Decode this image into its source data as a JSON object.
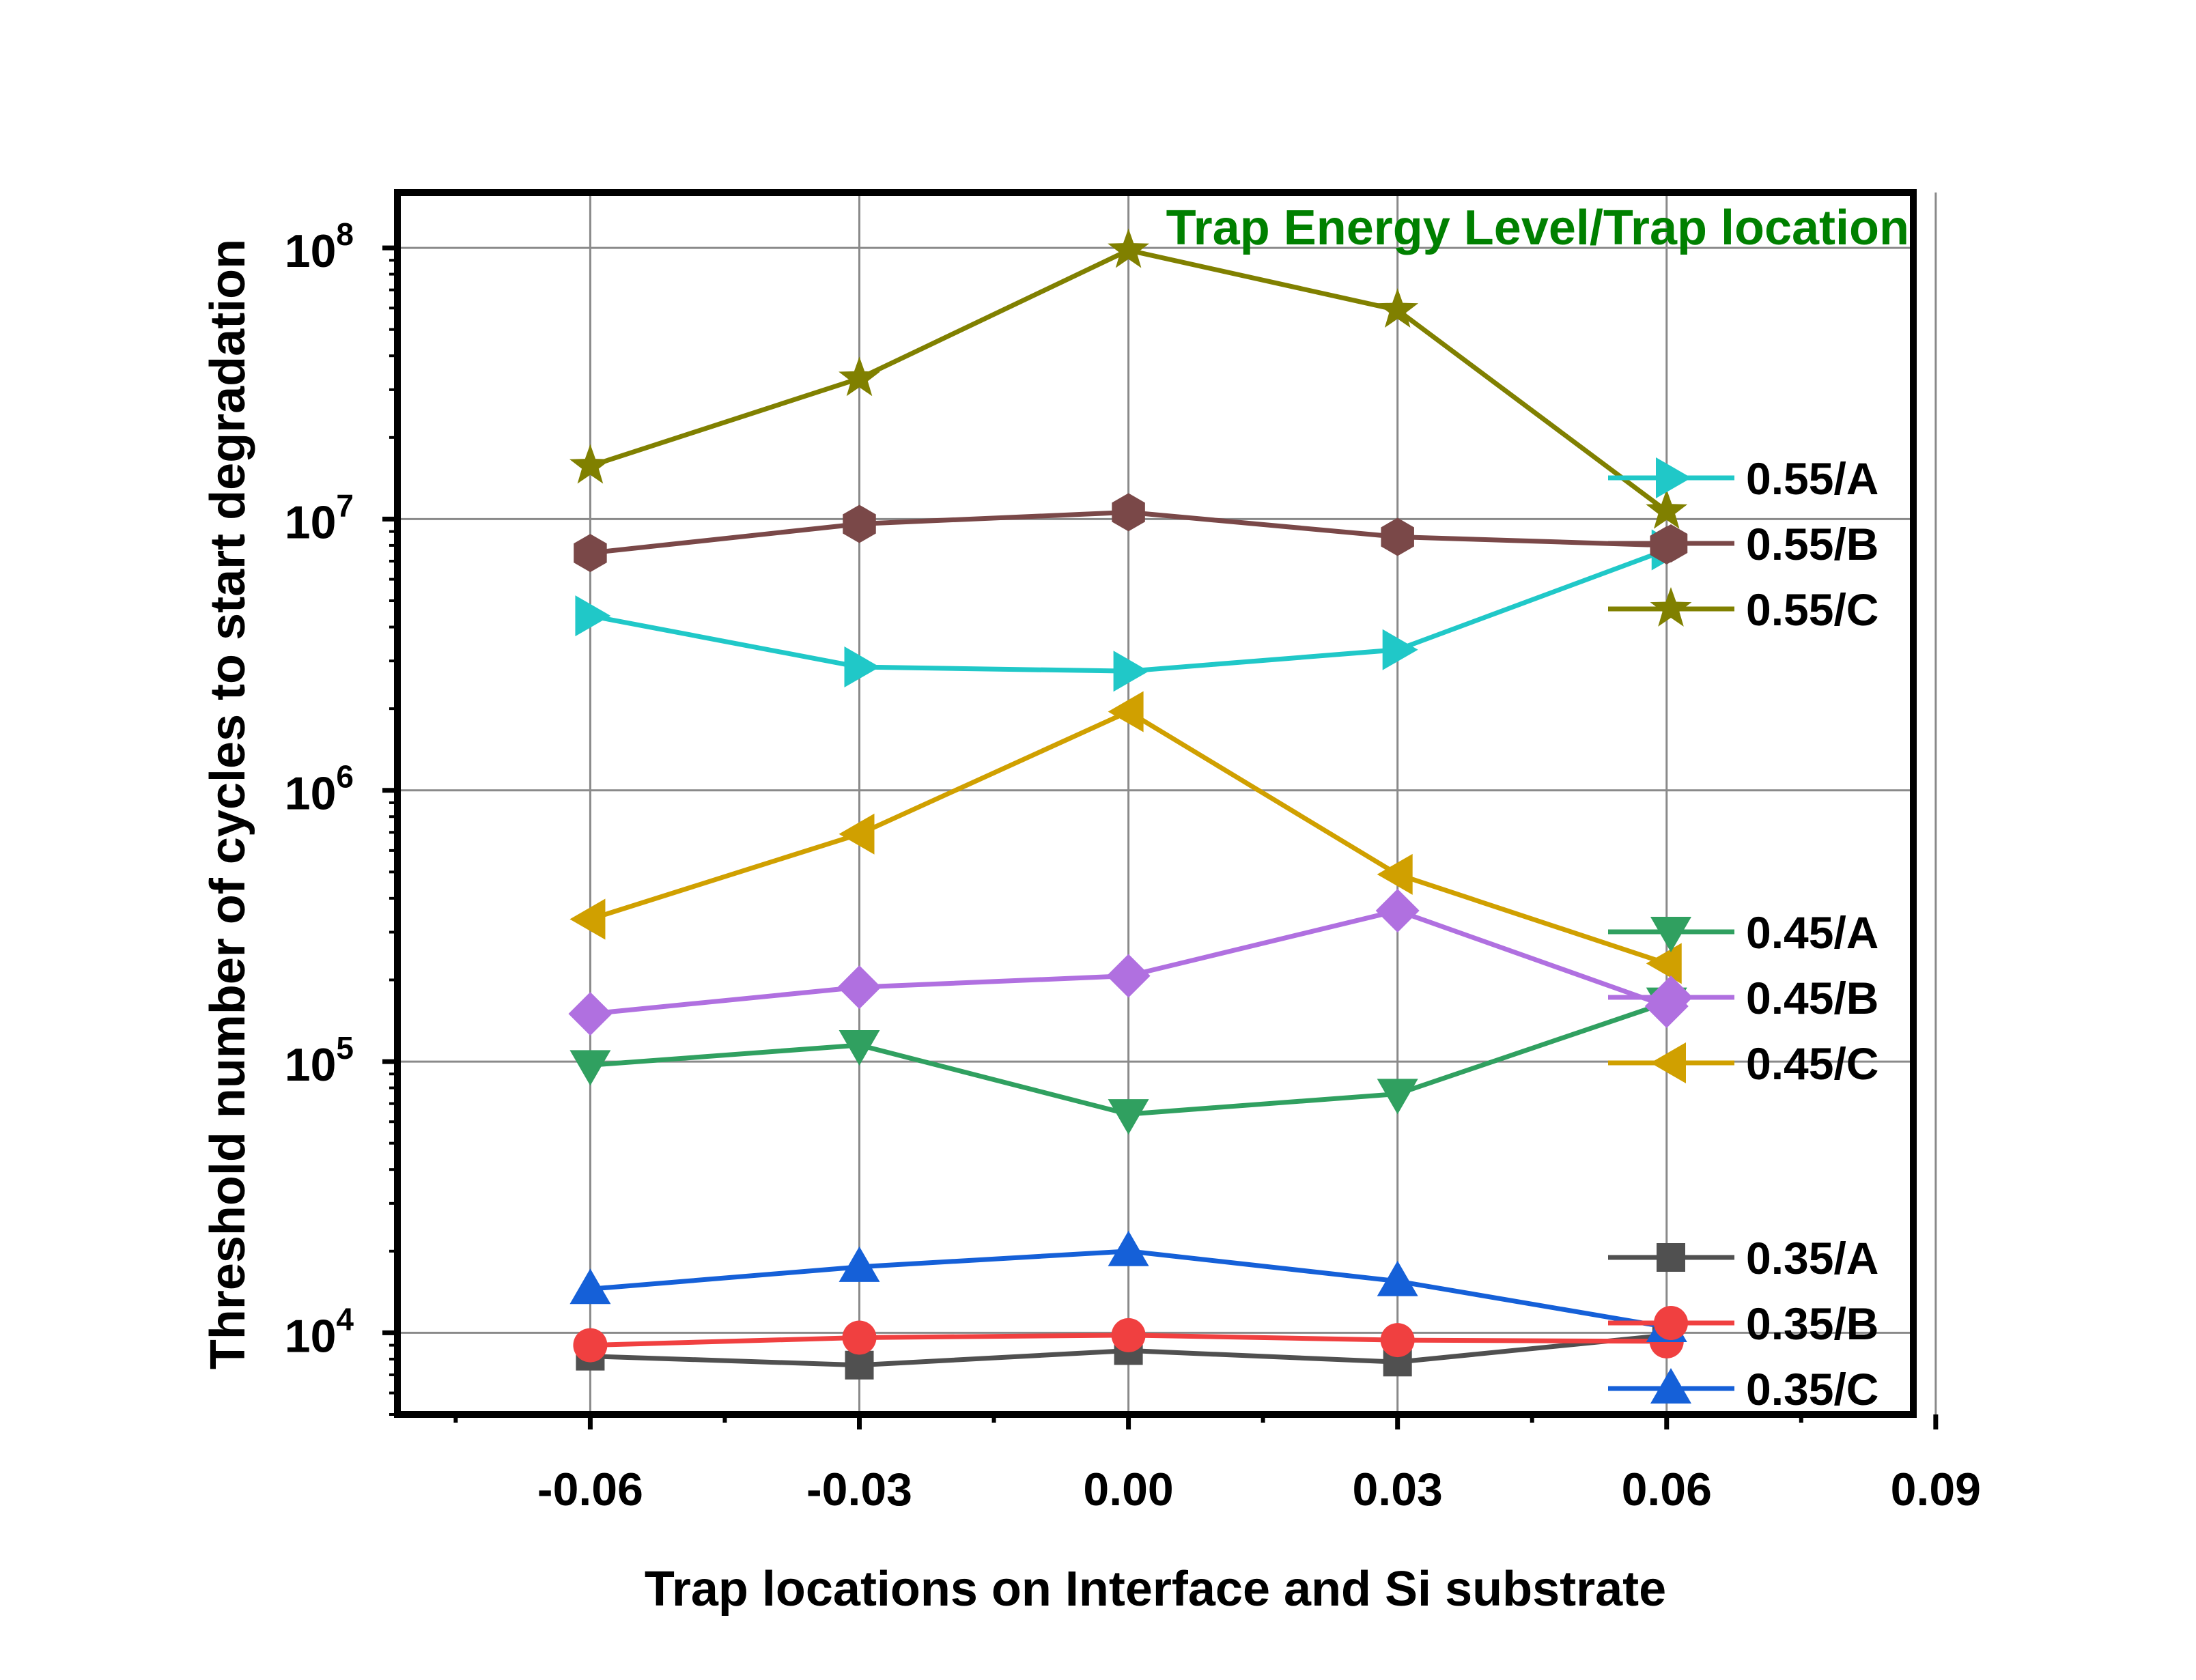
{
  "chart_data": {
    "type": "line",
    "xlabel": "Trap locations on Interface and Si substrate",
    "ylabel": "Threshold number of cycles to start degradation",
    "annotation": {
      "text": "Trap Energy Level/Trap location",
      "color": "#008000"
    },
    "xlim": [
      -0.0815,
      0.0875
    ],
    "ylim": [
      5000,
      160000000
    ],
    "yscale": "log",
    "grid": true,
    "x": [
      -0.06,
      -0.03,
      0.0,
      0.03,
      0.06
    ],
    "x_ticks": [
      {
        "value": -0.06,
        "label": "-0.06"
      },
      {
        "value": -0.03,
        "label": "-0.03"
      },
      {
        "value": 0.0,
        "label": "0.00"
      },
      {
        "value": 0.03,
        "label": "0.03"
      },
      {
        "value": 0.06,
        "label": "0.06"
      },
      {
        "value": 0.09,
        "label": "0.09"
      }
    ],
    "y_ticks": [
      {
        "value": 10000,
        "base": "10",
        "exp": "4"
      },
      {
        "value": 100000,
        "base": "10",
        "exp": "5"
      },
      {
        "value": 1000000,
        "base": "10",
        "exp": "6"
      },
      {
        "value": 10000000,
        "base": "10",
        "exp": "7"
      },
      {
        "value": 100000000,
        "base": "10",
        "exp": "8"
      }
    ],
    "legend_placement": "right, three groups",
    "series": [
      {
        "name": "0.35/A",
        "color": "#505050",
        "marker": "square",
        "group": 2,
        "values": [
          8200,
          7600,
          8600,
          7800,
          9800
        ]
      },
      {
        "name": "0.35/B",
        "color": "#f04040",
        "marker": "circle",
        "group": 2,
        "values": [
          9000,
          9600,
          9800,
          9400,
          9300
        ]
      },
      {
        "name": "0.35/C",
        "color": "#1560d8",
        "marker": "triangle-up",
        "group": 2,
        "values": [
          14500,
          17500,
          20000,
          15500,
          10500
        ]
      },
      {
        "name": "0.45/A",
        "color": "#30a060",
        "marker": "triangle-down",
        "group": 1,
        "values": [
          97000,
          115000,
          64000,
          76000,
          165000
        ]
      },
      {
        "name": "0.45/B",
        "color": "#b070e0",
        "marker": "diamond",
        "group": 1,
        "values": [
          150000,
          188000,
          207000,
          360000,
          160000
        ]
      },
      {
        "name": "0.45/C",
        "color": "#d0a000",
        "marker": "triangle-left",
        "group": 1,
        "values": [
          335000,
          690000,
          1950000,
          490000,
          230000
        ]
      },
      {
        "name": "0.55/A",
        "color": "#20c8c8",
        "marker": "triangle-right",
        "group": 0,
        "values": [
          4400000,
          2850000,
          2750000,
          3300000,
          7700000
        ]
      },
      {
        "name": "0.55/B",
        "color": "#7a4848",
        "marker": "hexagon",
        "group": 0,
        "values": [
          7500000,
          9600000,
          10600000,
          8600000,
          8000000
        ]
      },
      {
        "name": "0.55/C",
        "color": "#808000",
        "marker": "star",
        "group": 0,
        "values": [
          15700000,
          33000000,
          98000000,
          59000000,
          10700000
        ]
      }
    ]
  }
}
